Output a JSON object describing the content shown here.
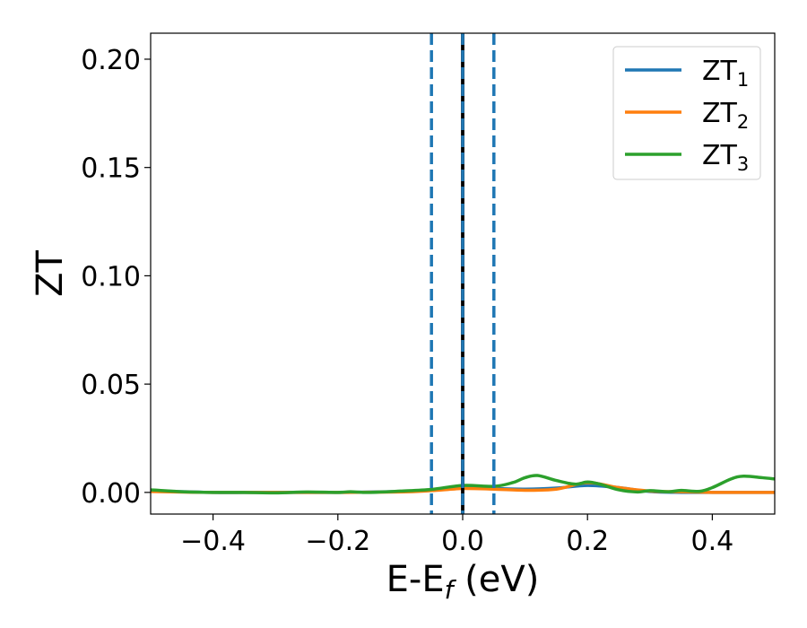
{
  "chart_data": {
    "type": "line",
    "xlabel_main": "E-E",
    "xlabel_sub": "f",
    "xlabel_unit": " (eV)",
    "ylabel": "ZT",
    "xlim": [
      -0.5,
      0.5
    ],
    "ylim": [
      -0.01,
      0.212
    ],
    "x_ticks": [
      -0.4,
      -0.2,
      0.0,
      0.2,
      0.4
    ],
    "x_tick_labels": [
      "−0.4",
      "−0.2",
      "0.0",
      "0.2",
      "0.4"
    ],
    "y_ticks": [
      0.0,
      0.05,
      0.1,
      0.15,
      0.2
    ],
    "y_tick_labels": [
      "0.00",
      "0.05",
      "0.10",
      "0.15",
      "0.20"
    ],
    "grid": false,
    "legend_position": "top-right",
    "vlines": [
      {
        "x": -0.05,
        "style": "dashed",
        "color": "#1f77b4"
      },
      {
        "x": 0.05,
        "style": "dashed",
        "color": "#1f77b4"
      },
      {
        "x": 0.0,
        "style": "solid",
        "color": "#000000"
      },
      {
        "x": 0.0,
        "style": "dashed",
        "color": "#1f77b4"
      }
    ],
    "series": [
      {
        "name": "ZT",
        "name_sub": "1",
        "color": "#1f77b4",
        "x": [
          -0.5,
          -0.4,
          -0.3,
          -0.2,
          -0.1,
          -0.05,
          0.0,
          0.05,
          0.1,
          0.15,
          0.2,
          0.25,
          0.3,
          0.35,
          0.4,
          0.45,
          0.5
        ],
        "y": [
          0.0008,
          0.0,
          0.0,
          0.0,
          0.0004,
          0.001,
          0.0022,
          0.0018,
          0.0015,
          0.002,
          0.0032,
          0.0022,
          0.0004,
          0.0,
          0.0,
          0.0,
          0.0
        ]
      },
      {
        "name": "ZT",
        "name_sub": "2",
        "color": "#ff7f0e",
        "x": [
          -0.5,
          -0.4,
          -0.3,
          -0.2,
          -0.1,
          -0.05,
          0.0,
          0.05,
          0.1,
          0.15,
          0.2,
          0.25,
          0.3,
          0.35,
          0.4,
          0.45,
          0.5
        ],
        "y": [
          0.0004,
          0.0,
          0.0,
          0.0,
          0.0002,
          0.0008,
          0.0018,
          0.0015,
          0.001,
          0.0015,
          0.0045,
          0.0022,
          0.0006,
          0.0003,
          0.0,
          0.0,
          0.0
        ]
      },
      {
        "name": "ZT",
        "name_sub": "3",
        "color": "#2ca02c",
        "x": [
          -0.5,
          -0.45,
          -0.4,
          -0.35,
          -0.3,
          -0.25,
          -0.2,
          -0.18,
          -0.15,
          -0.1,
          -0.05,
          0.0,
          0.05,
          0.08,
          0.1,
          0.12,
          0.15,
          0.18,
          0.2,
          0.22,
          0.25,
          0.28,
          0.3,
          0.33,
          0.35,
          0.38,
          0.4,
          0.43,
          0.45,
          0.48,
          0.5
        ],
        "y": [
          0.0012,
          0.0003,
          0.0,
          0.0,
          -0.0002,
          0.0002,
          0.0,
          0.0003,
          0.0,
          0.0006,
          0.0014,
          0.0032,
          0.0028,
          0.0045,
          0.0068,
          0.0078,
          0.0055,
          0.0038,
          0.0048,
          0.0038,
          0.0012,
          0.0002,
          0.0008,
          0.0003,
          0.0009,
          0.0005,
          0.0022,
          0.0062,
          0.0075,
          0.0068,
          0.0062
        ]
      }
    ]
  }
}
